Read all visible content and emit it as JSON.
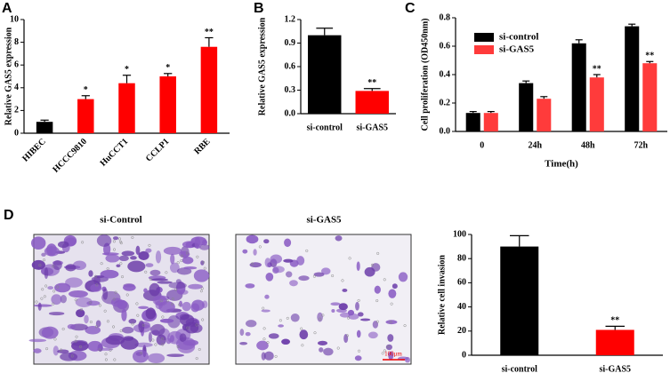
{
  "chart_data": [
    {
      "type": "bar",
      "panel": "A",
      "ylabel": "Relative GAS5 expression",
      "categories": [
        "HIBEC",
        "HCCC9810",
        "HuCCT1",
        "CCLP1",
        "RBE"
      ],
      "values": [
        1.0,
        3.0,
        4.4,
        5.0,
        7.6
      ],
      "errors": [
        0.15,
        0.3,
        0.7,
        0.25,
        0.8
      ],
      "colors": [
        "#000000",
        "#ff0000",
        "#ff0000",
        "#ff0000",
        "#ff0000"
      ],
      "annotations": [
        null,
        "*",
        "*",
        "*",
        "**"
      ],
      "ylim": [
        0,
        10
      ],
      "yticks": [
        0,
        2,
        4,
        6,
        8,
        10
      ]
    },
    {
      "type": "bar",
      "panel": "B",
      "ylabel": "Relative GAS5 expression",
      "categories": [
        "si-control",
        "si-GAS5"
      ],
      "values": [
        1.0,
        0.29
      ],
      "errors": [
        0.09,
        0.03
      ],
      "colors": [
        "#000000",
        "#ff0000"
      ],
      "annotations": [
        null,
        "**"
      ],
      "ylim": [
        0,
        1.2
      ],
      "yticks": [
        {
          "value": 0,
          "label": "0.0"
        },
        0.3,
        0.6,
        0.9,
        1.2
      ]
    },
    {
      "type": "grouped_bar",
      "panel": "C",
      "ylabel": "Cell proliferation (OD450nm)",
      "xlabel": "Time(h)",
      "categories": [
        "0",
        "24h",
        "48h",
        "72h"
      ],
      "series": [
        {
          "name": "si-control",
          "color": "#000000",
          "values": [
            0.13,
            0.34,
            0.62,
            0.74
          ],
          "errors": [
            0.01,
            0.015,
            0.025,
            0.015
          ],
          "annotations": [
            null,
            null,
            null,
            null
          ]
        },
        {
          "name": "si-GAS5",
          "color": "#ff3b3b",
          "values": [
            0.13,
            0.23,
            0.38,
            0.48
          ],
          "errors": [
            0.01,
            0.015,
            0.02,
            0.012
          ],
          "annotations": [
            null,
            null,
            "**",
            "**"
          ]
        }
      ],
      "legend": "upper left",
      "ylim": [
        0,
        0.8
      ],
      "yticks": [
        {
          "value": 0,
          "label": "0.0"
        },
        0.2,
        0.4,
        0.6,
        0.8
      ]
    },
    {
      "type": "bar",
      "panel": "D",
      "ylabel": "Relative cell invasion",
      "categories": [
        "si-control",
        "si-GAS5"
      ],
      "values": [
        90,
        21
      ],
      "errors": [
        9,
        3
      ],
      "colors": [
        "#000000",
        "#ff0000"
      ],
      "annotations": [
        null,
        "**"
      ],
      "ylim": [
        0,
        100
      ],
      "yticks": [
        0,
        20,
        40,
        60,
        80,
        100
      ]
    }
  ],
  "images": [
    {
      "label": "si-Control"
    },
    {
      "label": "si-GAS5",
      "scale_bar": "100μm"
    }
  ]
}
